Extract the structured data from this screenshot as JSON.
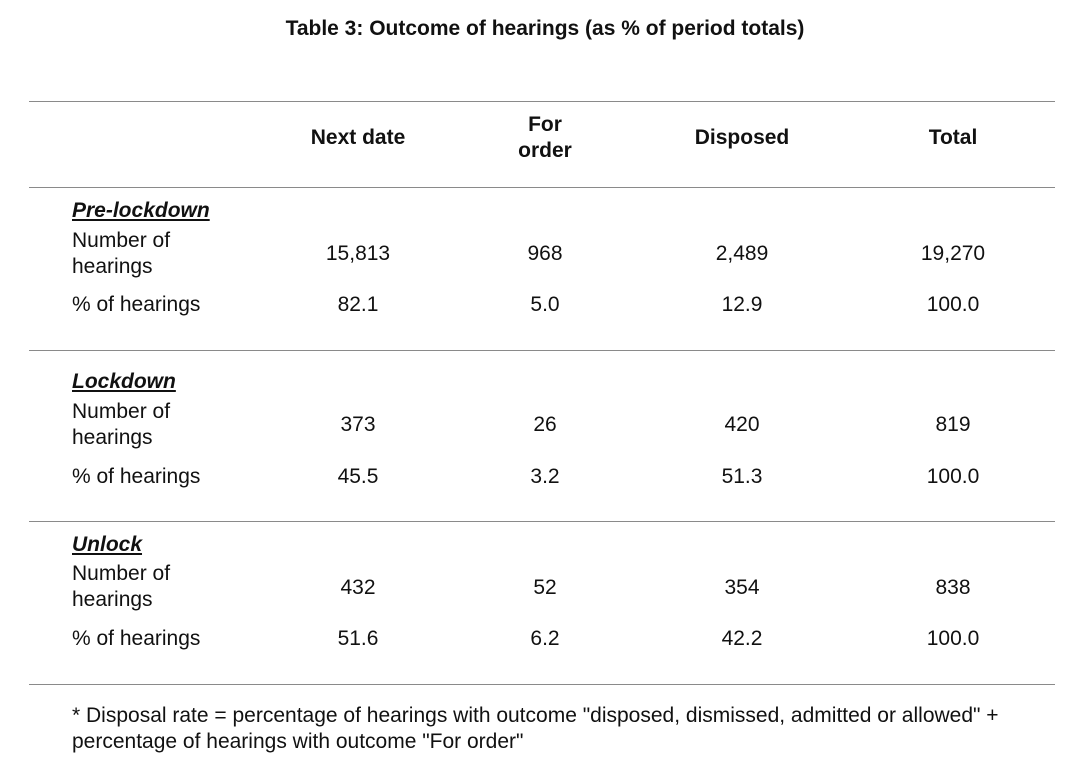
{
  "title": "Table 3: Outcome of hearings (as % of period totals)",
  "columns": [
    "Next date",
    "For order",
    "Disposed",
    "Total"
  ],
  "sections": [
    {
      "name": "Pre-lockdown",
      "rows": [
        {
          "label": "Number of hearings",
          "values": [
            "15,813",
            "968",
            "2,489",
            "19,270"
          ]
        },
        {
          "label": "% of hearings",
          "values": [
            "82.1",
            "5.0",
            "12.9",
            "100.0"
          ]
        }
      ]
    },
    {
      "name": "Lockdown",
      "rows": [
        {
          "label": "Number of hearings",
          "values": [
            "373",
            "26",
            "420",
            "819"
          ]
        },
        {
          "label": "% of hearings",
          "values": [
            "45.5",
            "3.2",
            "51.3",
            "100.0"
          ]
        }
      ]
    },
    {
      "name": "Unlock",
      "rows": [
        {
          "label": "Number of hearings",
          "values": [
            "432",
            "52",
            "354",
            "838"
          ]
        },
        {
          "label": "% of hearings",
          "values": [
            "51.6",
            "6.2",
            "42.2",
            "100.0"
          ]
        }
      ]
    }
  ],
  "footnote": "* Disposal rate = percentage of hearings with outcome \"disposed, dismissed, admitted or allowed\" + percentage of hearings with outcome \"For order\""
}
